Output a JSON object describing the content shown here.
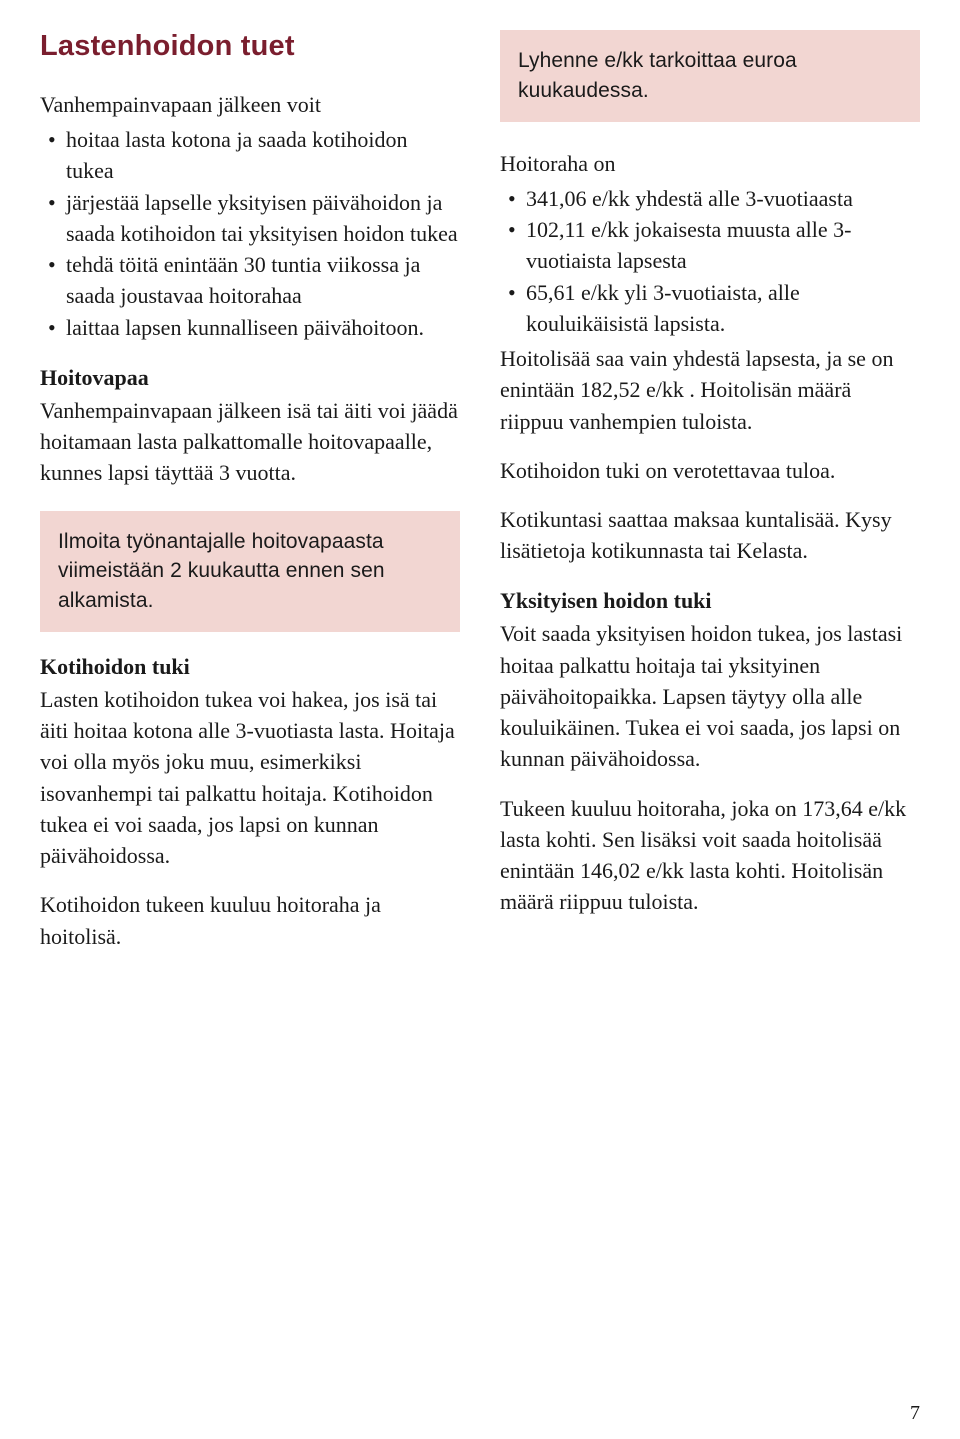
{
  "left": {
    "title": "Lastenhoidon tuet",
    "intro": "Vanhempainvapaan jälkeen voit",
    "intro_items": [
      "hoitaa lasta kotona ja saada kotihoidon tukea",
      "järjestää lapselle yksityisen päivähoidon ja saada kotihoidon tai yksityisen hoidon tukea",
      "tehdä töitä enintään 30 tuntia viikossa ja saada joustavaa hoitorahaa",
      "laittaa lapsen kunnalliseen päivähoitoon."
    ],
    "h2_hoitovapaa": "Hoitovapaa",
    "hoitovapaa_p": "Vanhempainvapaan jälkeen isä tai äiti voi jäädä hoitamaan lasta palkattomalle hoitovapaalle, kunnes lapsi täyttää 3 vuotta.",
    "callout1": "Ilmoita työnantajalle hoitovapaasta viimeistään 2 kuukautta ennen sen alkamista.",
    "h2_kotihoidon": "Kotihoidon tuki",
    "kotihoidon_p1": "Lasten kotihoidon tukea voi hakea, jos isä tai äiti hoitaa kotona alle 3-vuotiasta lasta. Hoitaja voi olla myös joku muu, esimerkiksi isovanhempi tai palkattu hoitaja. Kotihoidon tukea ei voi saada, jos lapsi on kunnan päivähoidossa.",
    "kotihoidon_p2": "Kotihoidon tukeen kuuluu hoitoraha ja hoitolisä."
  },
  "right": {
    "callout2": "Lyhenne e/kk tarkoittaa euroa kuukaudessa.",
    "hoitoraha_intro": "Hoitoraha on",
    "hoitoraha_items": [
      "341,06 e/kk yhdestä alle 3-vuotiaasta",
      "102,11 e/kk jokaisesta muusta alle 3-vuotiaista lapsesta",
      "65,61 e/kk yli 3-vuotiaista, alle kouluikäisistä lapsista."
    ],
    "p_hoitolisa": "Hoitolisää saa vain yhdestä lapsesta, ja se on enintään 182,52 e/kk . Hoitolisän määrä riippuu vanhempien tuloista.",
    "p_verotettava": "Kotihoidon tuki on verotettavaa tuloa.",
    "p_kuntalisa": "Kotikuntasi saattaa maksaa kuntalisää. Kysy lisätietoja kotikunnasta tai Kelasta.",
    "h2_yksityisen": "Yksityisen hoidon tuki",
    "p_yksityisen1": "Voit saada yksityisen hoidon tukea, jos lastasi hoitaa palkattu hoitaja tai yksityinen päivähoitopaikka. Lapsen täytyy olla alle kouluikäinen. Tukea ei voi saada, jos lapsi on kunnan päivähoidossa.",
    "p_yksityisen2": "Tukeen kuuluu hoitoraha, joka on 173,64 e/kk lasta kohti. Sen lisäksi voit saada hoitolisää enintään 146,02 e/kk lasta kohti. Hoitolisän määrä riippuu tuloista."
  },
  "pagenum": "7",
  "colors": {
    "title": "#7a1e2e",
    "callout_bg": "#f2d6d2",
    "text": "#1a1a1a",
    "background": "#ffffff"
  }
}
